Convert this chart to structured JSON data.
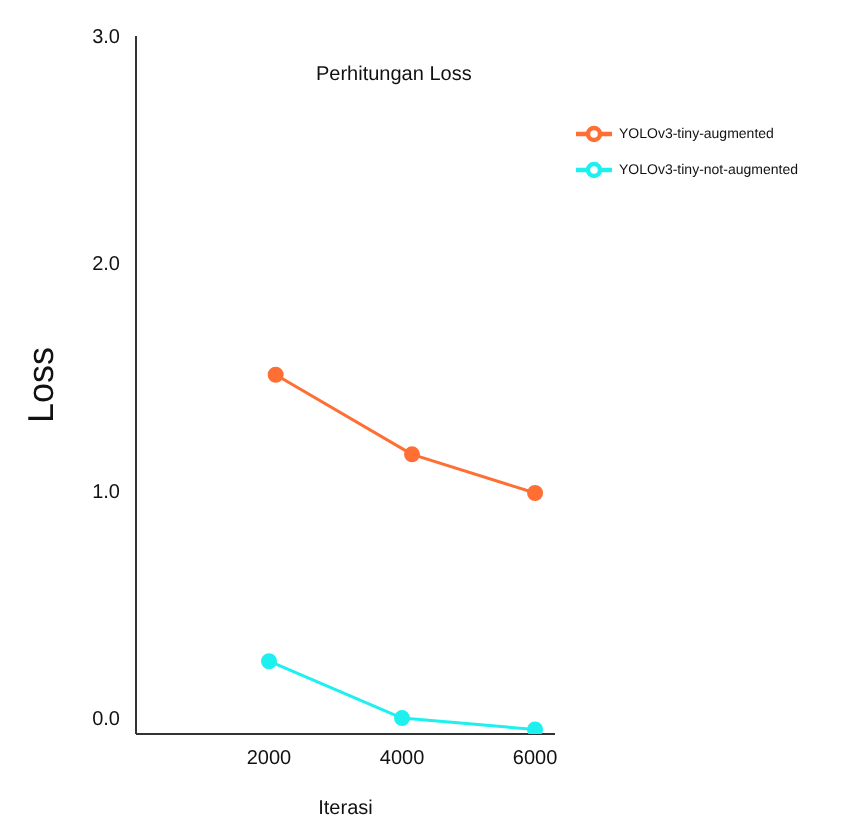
{
  "chart_data": {
    "type": "line",
    "title": "Perhitungan Loss",
    "xlabel": "Iterasi",
    "ylabel": "Loss",
    "xlim": [
      0,
      6300
    ],
    "xticks": [
      2000,
      4000,
      6000
    ],
    "ylim": [
      -0.07,
      3.0
    ],
    "yticks": [
      {
        "value": 0,
        "label": "0.0"
      },
      {
        "value": 1,
        "label": "1.0"
      },
      {
        "value": 2,
        "label": "2.0"
      },
      {
        "value": 3,
        "label": "3.0"
      }
    ],
    "series": [
      {
        "name": "YOLOv3-tiny-augmented",
        "color": "#ff6f33",
        "x": [
          2100,
          4150,
          6000
        ],
        "values": [
          1.51,
          1.16,
          0.99
        ]
      },
      {
        "name": "YOLOv3-tiny-not-augmented",
        "color": "#1ef0f0",
        "x": [
          2000,
          4000,
          6000
        ],
        "values": [
          0.25,
          0.0,
          -0.05
        ]
      }
    ],
    "marker": "circle",
    "grid": false,
    "legend": "top right"
  }
}
